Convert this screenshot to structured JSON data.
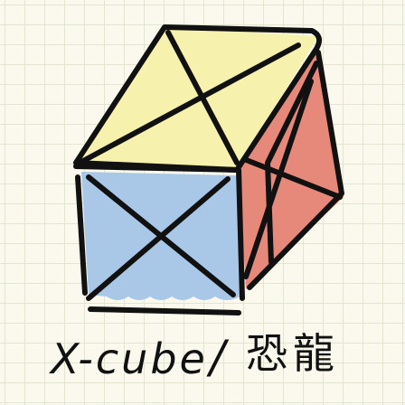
{
  "caption": {
    "latin": "X-cube",
    "separator": "/",
    "cjk": "恐龍"
  },
  "colors": {
    "background": "#fbf9ee",
    "grid": "#e2e6cf",
    "top_face": "#f6f2ad",
    "front_face": "#a9c7e6",
    "side_face": "#e6897a",
    "ink": "#111111"
  }
}
